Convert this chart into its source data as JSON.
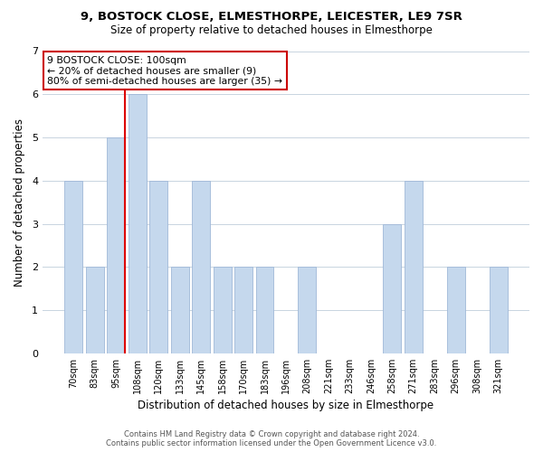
{
  "title": "9, BOSTOCK CLOSE, ELMESTHORPE, LEICESTER, LE9 7SR",
  "subtitle": "Size of property relative to detached houses in Elmesthorpe",
  "xlabel": "Distribution of detached houses by size in Elmesthorpe",
  "ylabel": "Number of detached properties",
  "categories": [
    "70sqm",
    "83sqm",
    "95sqm",
    "108sqm",
    "120sqm",
    "133sqm",
    "145sqm",
    "158sqm",
    "170sqm",
    "183sqm",
    "196sqm",
    "208sqm",
    "221sqm",
    "233sqm",
    "246sqm",
    "258sqm",
    "271sqm",
    "283sqm",
    "296sqm",
    "308sqm",
    "321sqm"
  ],
  "values": [
    4,
    2,
    5,
    6,
    4,
    2,
    4,
    2,
    2,
    2,
    0,
    2,
    0,
    0,
    0,
    3,
    4,
    0,
    2,
    0,
    2
  ],
  "highlight_index": 2,
  "highlight_color": "#dd0000",
  "bar_color": "#c5d8ed",
  "bar_edge_color": "#a0b8d8",
  "ylim_max": 7,
  "yticks": [
    0,
    1,
    2,
    3,
    4,
    5,
    6,
    7
  ],
  "annotation_lines": [
    "9 BOSTOCK CLOSE: 100sqm",
    "← 20% of detached houses are smaller (9)",
    "80% of semi-detached houses are larger (35) →"
  ],
  "annotation_box_color": "#ffffff",
  "annotation_box_edge": "#cc0000",
  "footer_lines": [
    "Contains HM Land Registry data © Crown copyright and database right 2024.",
    "Contains public sector information licensed under the Open Government Licence v3.0."
  ],
  "background_color": "#ffffff",
  "grid_color": "#c8d4e0"
}
